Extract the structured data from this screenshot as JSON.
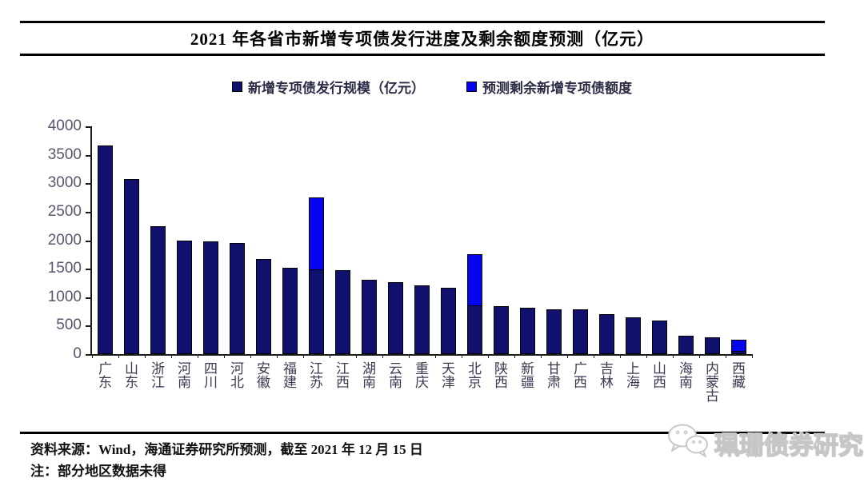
{
  "header": {
    "title": "2021 年各省市新增专项债发行进度及剩余额度预测（亿元）"
  },
  "legend": [
    {
      "label": "新增专项债发行规模（亿元）",
      "color": "#10106E"
    },
    {
      "label": "预测剩余新增专项债额度",
      "color": "#0505F0"
    }
  ],
  "chart_data": {
    "type": "bar",
    "stacked": true,
    "title": "2021 年各省市新增专项债发行进度及剩余额度预测（亿元）",
    "xlabel": "",
    "ylabel": "",
    "ylim": [
      0,
      4000
    ],
    "yticks": [
      0,
      500,
      1000,
      1500,
      2000,
      2500,
      3000,
      3500,
      4000
    ],
    "grid": false,
    "legend_position": "top",
    "categories": [
      "广东",
      "山东",
      "浙江",
      "河南",
      "四川",
      "河北",
      "安徽",
      "福建",
      "江苏",
      "江西",
      "湖南",
      "云南",
      "重庆",
      "天津",
      "北京",
      "陕西",
      "新疆",
      "甘肃",
      "广西",
      "吉林",
      "上海",
      "山西",
      "海南",
      "内蒙古",
      "西藏"
    ],
    "series": [
      {
        "name": "新增专项债发行规模（亿元）",
        "color": "#10106E",
        "values": [
          3660,
          3070,
          2250,
          1990,
          1975,
          1950,
          1670,
          1510,
          1490,
          1470,
          1300,
          1270,
          1210,
          1160,
          850,
          840,
          810,
          790,
          780,
          700,
          640,
          590,
          320,
          300,
          50
        ]
      },
      {
        "name": "预测剩余新增专项债额度",
        "color": "#0505F0",
        "values": [
          0,
          0,
          0,
          0,
          0,
          0,
          0,
          0,
          1260,
          0,
          0,
          0,
          0,
          0,
          900,
          0,
          0,
          0,
          0,
          0,
          0,
          0,
          0,
          0,
          190
        ]
      }
    ]
  },
  "footer": {
    "source": "资料来源：Wind，海通证券研究所预测，截至 2021 年 12 月 15 日",
    "note": "注：部分地区数据未得"
  },
  "watermark": {
    "label": "珮珊债券研究",
    "icon": "wechat-icon"
  }
}
